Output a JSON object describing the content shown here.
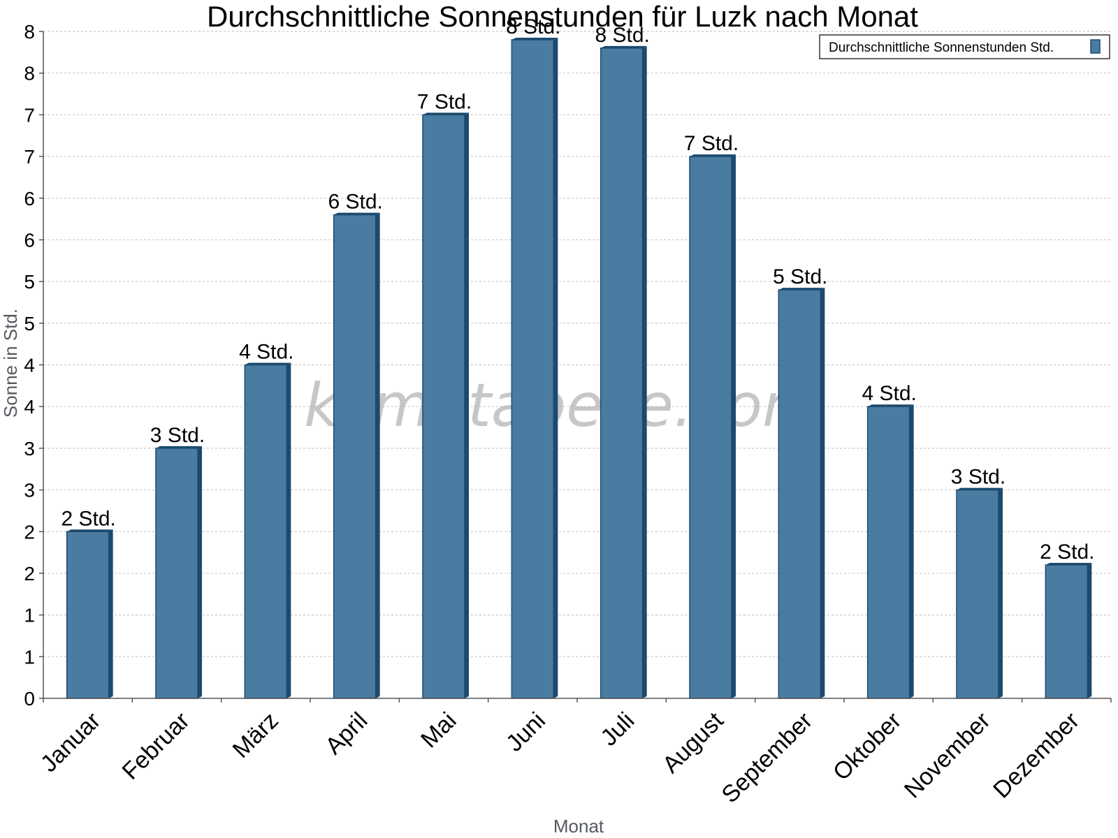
{
  "chart_data": {
    "type": "bar",
    "title": "Durchschnittliche Sonnenstunden für Luzk nach Monat",
    "xlabel": "Monat",
    "ylabel": "Sonne in Std.",
    "categories": [
      "Januar",
      "Februar",
      "März",
      "April",
      "Mai",
      "Juni",
      "Juli",
      "August",
      "September",
      "Oktober",
      "November",
      "Dezember"
    ],
    "series": [
      {
        "name": "Durchschnittliche Sonnenstunden Std.",
        "values": [
          2.0,
          3.0,
          4.0,
          5.8,
          7.0,
          7.9,
          7.8,
          6.5,
          4.9,
          3.5,
          2.5,
          1.6
        ],
        "labels": [
          "2 Std.",
          "3 Std.",
          "4 Std.",
          "6 Std.",
          "7 Std.",
          "8 Std.",
          "8 Std.",
          "7 Std.",
          "5 Std.",
          "4 Std.",
          "3 Std.",
          "2 Std."
        ]
      }
    ],
    "ylim": [
      0,
      8
    ],
    "yticks": [
      0,
      0.5,
      1,
      1.5,
      2,
      2.5,
      3,
      3.5,
      4,
      4.5,
      5,
      5.5,
      6,
      6.5,
      7,
      7.5,
      8
    ],
    "ytick_labels": [
      "0",
      "1",
      "1",
      "2",
      "2",
      "3",
      "3",
      "4",
      "4",
      "5",
      "5",
      "6",
      "6",
      "7",
      "7",
      "8",
      "8"
    ],
    "grid": true,
    "legend_position": "top-right",
    "bar_color": "#4a7ba0",
    "bar_side_color": "#1c4a6e"
  },
  "watermark": "klimatabelle.com"
}
